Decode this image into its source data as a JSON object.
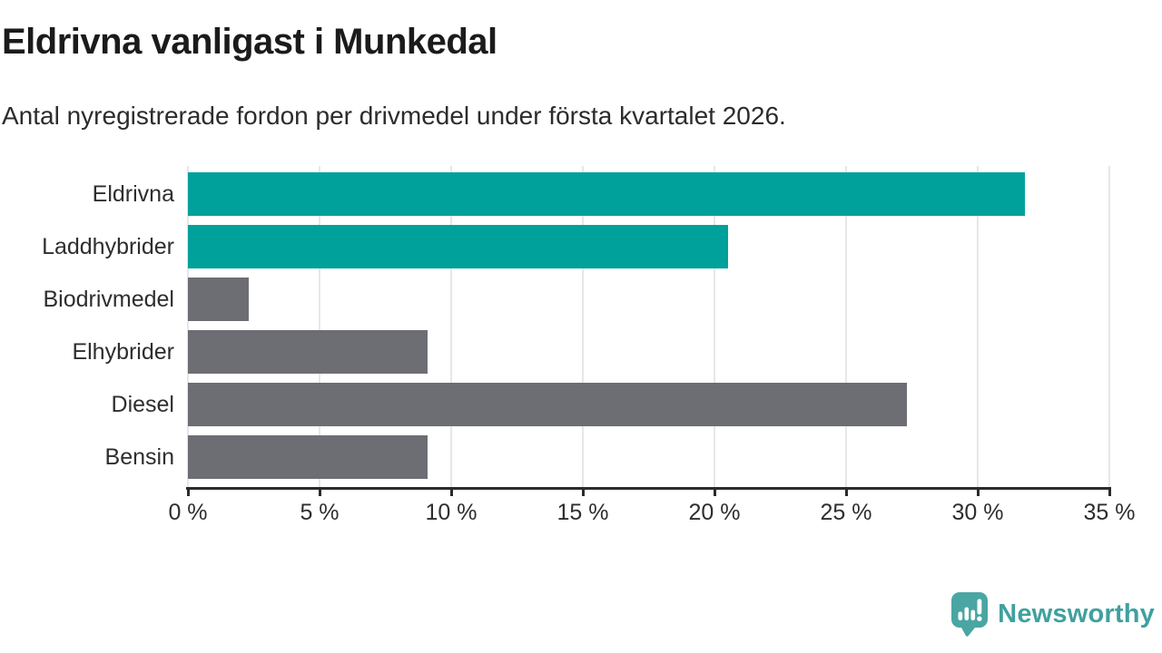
{
  "header": {
    "title": "Eldrivna vanligast i Munkedal",
    "subtitle": "Antal nyregistrerade fordon per drivmedel under första kvartalet 2026."
  },
  "chart_data": {
    "type": "bar",
    "orientation": "horizontal",
    "title": "Eldrivna vanligast i Munkedal",
    "subtitle": "Antal nyregistrerade fordon per drivmedel under första kvartalet 2026.",
    "categories": [
      "Eldrivna",
      "Laddhybrider",
      "Biodrivmedel",
      "Elhybrider",
      "Diesel",
      "Bensin"
    ],
    "values": [
      31.8,
      20.5,
      2.3,
      9.1,
      27.3,
      9.1
    ],
    "unit": "%",
    "bar_colors": [
      "#00a19b",
      "#00a19b",
      "#6d6d74",
      "#6d6d74",
      "#6d6d74",
      "#6d6d74"
    ],
    "highlight_color": "#00a19b",
    "default_color": "#6d6d74",
    "xlim": [
      0,
      35
    ],
    "x_ticks": [
      0,
      5,
      10,
      15,
      20,
      25,
      30,
      35
    ],
    "x_tick_labels": [
      "0 %",
      "5 %",
      "10 %",
      "15 %",
      "20 %",
      "25 %",
      "30 %",
      "35 %"
    ],
    "grid": true,
    "gridline_color": "#e7e7e7",
    "axis_color": "#2b2b2b",
    "legend_position": "none"
  },
  "footer": {
    "brand": "Newsworthy",
    "brand_color": "#3fa19f",
    "logo_icon": "newsworthy-speech-bubble-chart-icon",
    "logo_fill": "#4aa6a3",
    "logo_glyph_color": "#ffffff"
  }
}
